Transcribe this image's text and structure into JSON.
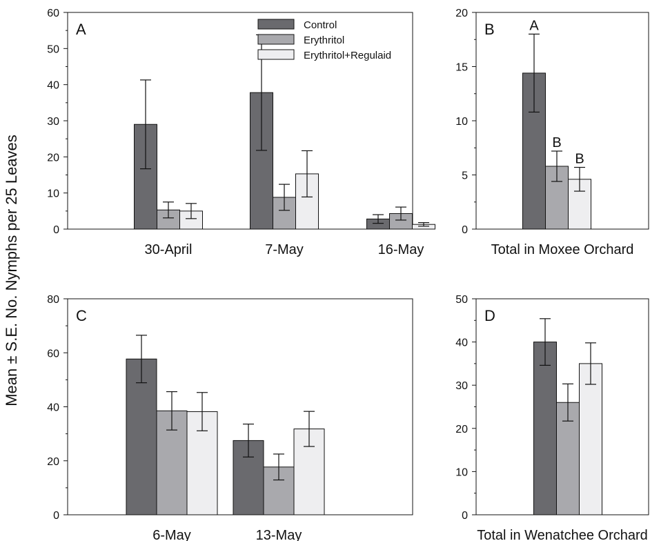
{
  "ylabel": "Mean ± S.E. No. Nymphs per 25 Leaves",
  "colors": {
    "Control": "#6a6a6e",
    "Erythritol": "#a9a9ad",
    "Erythritol+Regulaid": "#eeeef0"
  },
  "chart_data": [
    {
      "type": "bar",
      "panel": "A",
      "categories": [
        "30-April",
        "7-May",
        "16-May"
      ],
      "series": [
        {
          "name": "Control",
          "values": [
            29.0,
            37.8,
            2.8
          ],
          "errors": [
            12.3,
            16.0,
            1.2
          ]
        },
        {
          "name": "Erythritol",
          "values": [
            5.3,
            8.8,
            4.3
          ],
          "errors": [
            2.2,
            3.6,
            1.8
          ]
        },
        {
          "name": "Erythritol+Regulaid",
          "values": [
            5.0,
            15.3,
            1.3
          ],
          "errors": [
            2.1,
            6.4,
            0.5
          ]
        }
      ],
      "ylim": [
        0,
        60
      ],
      "yticks": [
        0,
        10,
        20,
        30,
        40,
        50,
        60
      ],
      "legend": {
        "placement": "top-center",
        "entries": [
          "Control",
          "Erythritol",
          "Erythritol+Regulaid"
        ]
      },
      "grid": false
    },
    {
      "type": "bar",
      "panel": "B",
      "categories": [
        "Total in Moxee Orchard"
      ],
      "xlabel": "Total in Moxee Orchard",
      "series": [
        {
          "name": "Control",
          "values": [
            14.4
          ],
          "errors": [
            3.6
          ],
          "letters": [
            "A"
          ]
        },
        {
          "name": "Erythritol",
          "values": [
            5.8
          ],
          "errors": [
            1.4
          ],
          "letters": [
            "B"
          ]
        },
        {
          "name": "Erythritol+Regulaid",
          "values": [
            4.6
          ],
          "errors": [
            1.1
          ],
          "letters": [
            "B"
          ]
        }
      ],
      "ylim": [
        0,
        20
      ],
      "yticks": [
        0,
        5,
        10,
        15,
        20
      ],
      "grid": false
    },
    {
      "type": "bar",
      "panel": "C",
      "categories": [
        "6-May",
        "13-May"
      ],
      "series": [
        {
          "name": "Control",
          "values": [
            57.7,
            27.5
          ],
          "errors": [
            8.8,
            6.1
          ]
        },
        {
          "name": "Erythritol",
          "values": [
            38.5,
            17.7
          ],
          "errors": [
            7.1,
            4.8
          ]
        },
        {
          "name": "Erythritol+Regulaid",
          "values": [
            38.2,
            31.8
          ],
          "errors": [
            7.1,
            6.5
          ]
        }
      ],
      "ylim": [
        0,
        80
      ],
      "yticks": [
        0,
        20,
        40,
        60,
        80
      ],
      "grid": false
    },
    {
      "type": "bar",
      "panel": "D",
      "categories": [
        "Total in Wenatchee Orchard"
      ],
      "xlabel": "Total in Wenatchee Orchard",
      "series": [
        {
          "name": "Control",
          "values": [
            40.0
          ],
          "errors": [
            5.4
          ]
        },
        {
          "name": "Erythritol",
          "values": [
            26.0
          ],
          "errors": [
            4.3
          ]
        },
        {
          "name": "Erythritol+Regulaid",
          "values": [
            35.0
          ],
          "errors": [
            4.8
          ]
        }
      ],
      "ylim": [
        0,
        50
      ],
      "yticks": [
        0,
        10,
        20,
        30,
        40,
        50
      ],
      "grid": false
    }
  ]
}
